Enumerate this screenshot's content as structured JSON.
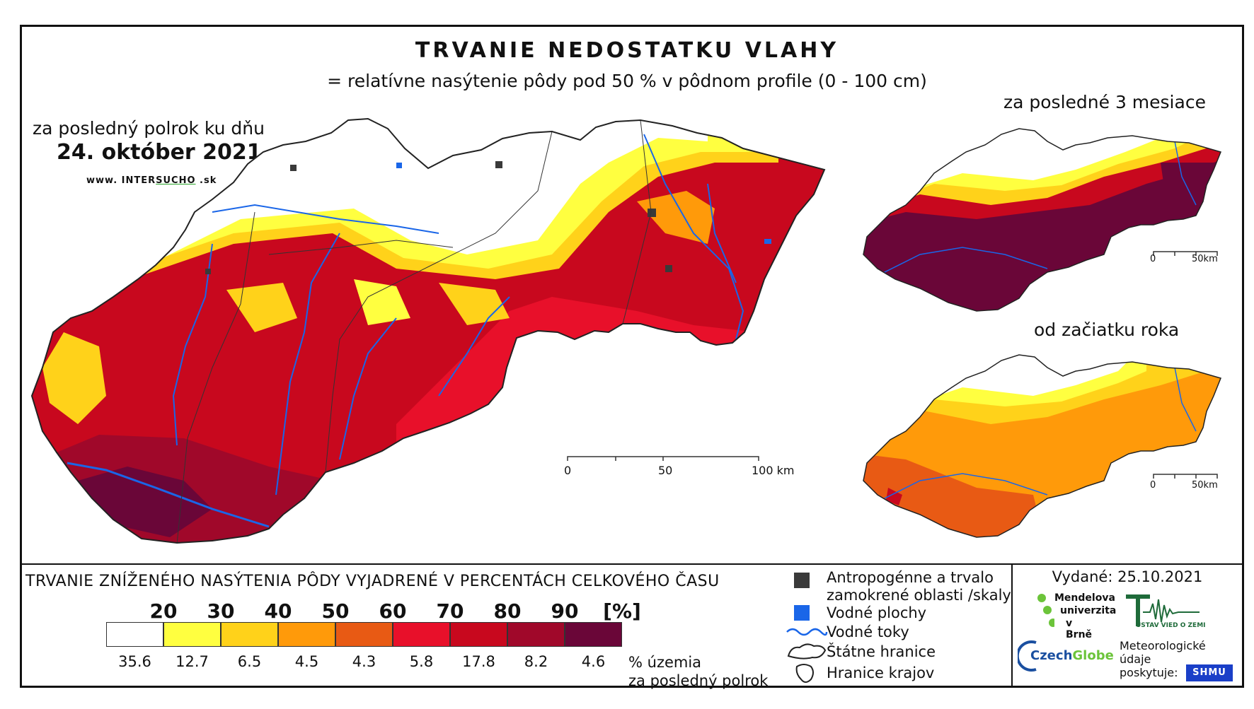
{
  "title": "TRVANIE NEDOSTATKU VLAHY",
  "subtitle": "= relatívne nasýtenie pôdy pod 50 % v pôdnom profile (0 - 100 cm)",
  "main_map": {
    "period_label": "za posledný polrok ku dňu",
    "date": "24. október 2021",
    "website": {
      "prefix": "www. INTER",
      "mid": "SUCHO",
      "suffix": " .sk"
    },
    "scale": {
      "ticks": [
        "0",
        "50",
        "100 km"
      ]
    }
  },
  "inset_top": {
    "label": "za posledné 3 mesiace",
    "scale": {
      "ticks": [
        "0",
        "50km"
      ]
    }
  },
  "inset_bottom": {
    "label": "od začiatku roka",
    "scale": {
      "ticks": [
        "0",
        "50km"
      ]
    }
  },
  "legend": {
    "title": "TRVANIE ZNÍŽENÉHO NASÝTENIA PÔDY VYJADRENÉ V PERCENTÁCH CELKOVÉHO ČASU",
    "thresholds": [
      "20",
      "30",
      "40",
      "50",
      "60",
      "70",
      "80",
      "90",
      "[%]"
    ],
    "colors": [
      "#ffffff",
      "#ffff40",
      "#ffd21a",
      "#ff9a0a",
      "#e85a14",
      "#e8102a",
      "#c8081e",
      "#a0082a",
      "#6a0638"
    ],
    "percentages": [
      "35.6",
      "12.7",
      "6.5",
      "4.5",
      "4.3",
      "5.8",
      "17.8",
      "8.2",
      "4.6"
    ],
    "percent_label_line1": "% územia",
    "percent_label_line2": "za posledný polrok"
  },
  "symbols": {
    "anthropogenic_line1": "Antropogénne a trvalo",
    "anthropogenic_line2": "zamokrené oblasti /skaly",
    "water_bodies": "Vodné plochy",
    "water_streams": "Vodné toky",
    "state_borders": "Štátne hranice",
    "region_borders": "Hranice krajov"
  },
  "issued": "Vydané: 25.10.2021",
  "logos": {
    "mendel_line1": "Mendelova",
    "mendel_line2": "univerzita",
    "mendel_line3": "v Brně",
    "czechglobe_a": "Czech",
    "czechglobe_b": "Globe",
    "ustav": "ÚSTAV VIED O ZEMI",
    "meteo_line1": "Meteorologické",
    "meteo_line2": "údaje",
    "meteo_line3": "poskytuje:",
    "shmu": "SHMU"
  }
}
